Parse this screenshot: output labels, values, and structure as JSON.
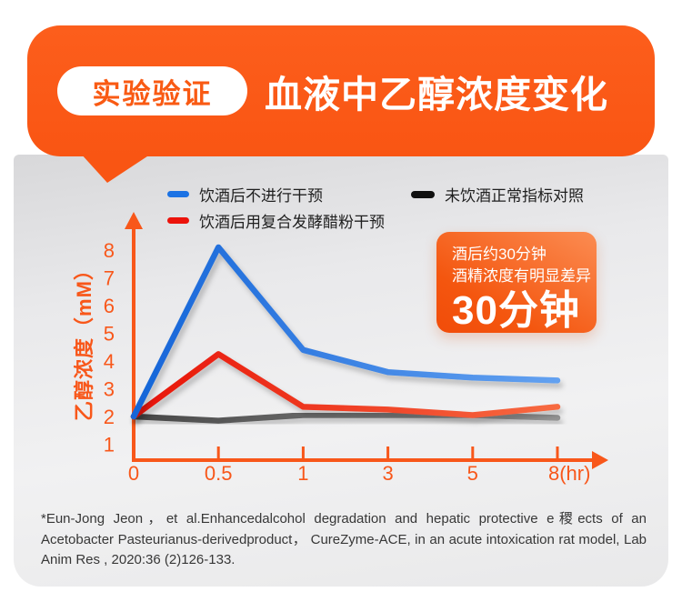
{
  "header": {
    "badge": "实验验证",
    "title": "血液中乙醇浓度变化"
  },
  "legend": [
    {
      "label": "饮酒后不进行干预",
      "color": "#1b72e4"
    },
    {
      "label": "饮酒后用复合发酵醋粉干预",
      "color": "#ec130b"
    },
    {
      "label": "未饮酒正常指标对照",
      "color": "#101010"
    }
  ],
  "callout": {
    "line1": "酒后约30分钟",
    "line2": "酒精浓度有明显差异",
    "big": "30分钟"
  },
  "chart_data": {
    "type": "line",
    "x": [
      0,
      0.5,
      1,
      3,
      5,
      8
    ],
    "x_tick_labels": [
      "0",
      "0.5",
      "1",
      "3",
      "5",
      "8(hr)"
    ],
    "y_ticks": [
      1,
      2,
      3,
      4,
      5,
      6,
      7,
      8
    ],
    "ylabel": "乙醇浓度（mM）",
    "xlabel_unit": "hr",
    "ylim": [
      0.4,
      8.8
    ],
    "grid": false,
    "legend_position": "top",
    "axis_color": "#f8571a",
    "series": [
      {
        "name": "饮酒后不进行干预",
        "color_start": "#1565d8",
        "color_end": "#63a1f0",
        "values": [
          2.0,
          8.1,
          4.4,
          3.6,
          3.4,
          3.3
        ]
      },
      {
        "name": "饮酒后用复合发酵醋粉干预",
        "color_start": "#e81409",
        "color_end": "#f76a41",
        "values": [
          2.0,
          4.25,
          2.35,
          2.25,
          2.05,
          2.35
        ]
      },
      {
        "name": "未饮酒正常指标对照",
        "color_start": "#474747",
        "color_end": "#949494",
        "values": [
          2.0,
          1.85,
          2.05,
          2.05,
          2.05,
          1.95
        ]
      }
    ]
  },
  "footnote": "*Eun-Jong Jeon，et al.Enhancedalcohol degradation and hepatic protective e稷ects of an Acetobacter Pasteurianus-derivedproduct， CureZyme-ACE, in an acute intoxication rat model, Lab Anim Res , 2020:36 (2)126-133."
}
